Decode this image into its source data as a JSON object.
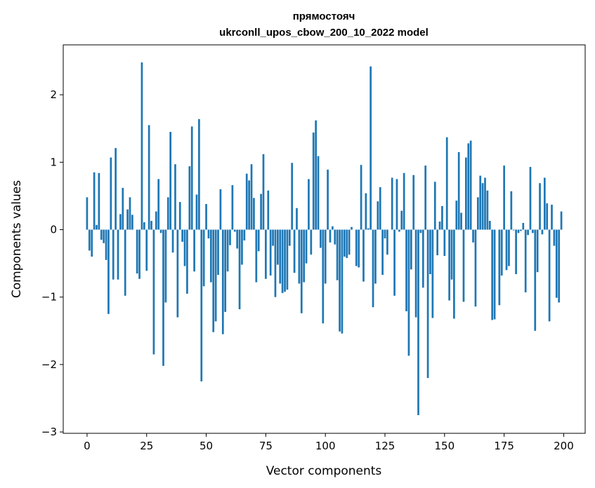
{
  "chart_data": {
    "type": "bar",
    "title": "прямостояч",
    "subtitle": "ukrconll_upos_cbow_200_10_2022 model",
    "xlabel": "Vector components",
    "ylabel": "Components values",
    "xlim": [
      -10,
      209
    ],
    "ylim": [
      -3.02,
      2.74
    ],
    "xticks": [
      0,
      25,
      50,
      75,
      100,
      125,
      150,
      175,
      200
    ],
    "yticks": [
      -3,
      -2,
      -1,
      0,
      1,
      2
    ],
    "ytick_labels": [
      "−3",
      "−2",
      "−1",
      "0",
      "1",
      "2"
    ],
    "bar_color": "#1f77b4",
    "grid": false,
    "legend": "none",
    "values": [
      0.48,
      -0.31,
      -0.4,
      0.85,
      0.07,
      0.84,
      -0.15,
      -0.2,
      -0.45,
      -1.25,
      1.07,
      -0.74,
      1.21,
      -0.74,
      0.23,
      0.62,
      -0.98,
      0.3,
      0.48,
      0.22,
      0.0,
      -0.65,
      -0.73,
      2.48,
      0.11,
      -0.61,
      1.55,
      0.13,
      -1.85,
      0.27,
      0.75,
      -0.05,
      -2.02,
      -1.08,
      0.48,
      1.45,
      -0.34,
      0.97,
      -1.3,
      0.41,
      -0.18,
      -0.54,
      -0.95,
      0.94,
      1.53,
      -0.62,
      0.52,
      1.64,
      -2.25,
      -0.84,
      0.38,
      -0.13,
      -0.78,
      -1.52,
      -1.36,
      -0.67,
      0.6,
      -1.55,
      -1.22,
      -0.62,
      -0.23,
      0.66,
      -0.03,
      -0.28,
      -1.18,
      -0.52,
      -0.16,
      0.83,
      0.73,
      0.97,
      0.47,
      -0.78,
      -0.32,
      0.53,
      1.12,
      -0.73,
      0.58,
      -0.68,
      -0.24,
      -1.0,
      -0.52,
      -0.8,
      -0.94,
      -0.92,
      -0.89,
      -0.24,
      0.99,
      -0.64,
      0.32,
      -0.8,
      -1.24,
      -0.78,
      -0.5,
      0.75,
      -0.37,
      1.44,
      1.62,
      1.09,
      -0.27,
      -1.39,
      -0.8,
      0.89,
      -0.19,
      0.05,
      -0.22,
      -0.75,
      -1.51,
      -1.54,
      -0.4,
      -0.42,
      -0.37,
      0.04,
      0.0,
      -0.54,
      -0.56,
      0.96,
      -0.77,
      0.54,
      0.02,
      2.42,
      -1.15,
      -0.8,
      0.42,
      0.63,
      -0.67,
      -0.13,
      -0.37,
      0.0,
      0.77,
      -0.98,
      0.75,
      -0.03,
      0.28,
      0.84,
      -1.21,
      -1.87,
      -0.59,
      0.81,
      -1.3,
      -2.75,
      -0.05,
      -0.86,
      0.95,
      -2.2,
      -0.66,
      -1.31,
      0.71,
      -0.38,
      0.12,
      0.35,
      -0.39,
      1.37,
      -1.05,
      -0.74,
      -1.32,
      0.43,
      1.15,
      0.25,
      -1.07,
      1.07,
      1.28,
      1.32,
      -0.19,
      -1.14,
      0.48,
      0.8,
      0.69,
      0.77,
      0.58,
      0.13,
      -1.34,
      -1.33,
      0.0,
      -1.12,
      -0.68,
      0.95,
      -0.6,
      -0.54,
      0.57,
      -0.01,
      -0.66,
      -0.05,
      -0.02,
      0.1,
      -0.93,
      -0.08,
      0.93,
      -0.05,
      -1.5,
      -0.63,
      0.69,
      -0.07,
      0.77,
      0.39,
      -1.36,
      0.37,
      -0.24,
      -1.01,
      -1.08,
      0.27
    ]
  }
}
